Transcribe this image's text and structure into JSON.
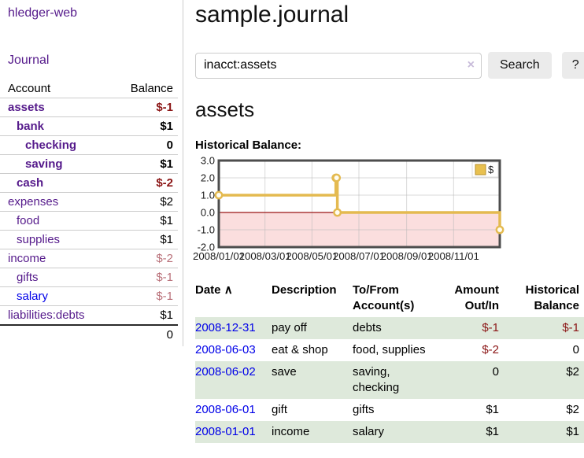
{
  "app": {
    "title": "hledger-web"
  },
  "sidebar": {
    "journal_link": "Journal",
    "accounts": {
      "header": {
        "account": "Account",
        "balance": "Balance"
      },
      "rows": [
        {
          "name": "assets",
          "depth": 1,
          "emph": true,
          "name_color": "purple",
          "balance": "$-1",
          "bal_color": "negative"
        },
        {
          "name": "bank",
          "depth": 2,
          "emph": true,
          "name_color": "purple",
          "balance": "$1",
          "bal_color": "normal"
        },
        {
          "name": "checking",
          "depth": 3,
          "emph": true,
          "name_color": "purple",
          "balance": "0",
          "bal_color": "normal"
        },
        {
          "name": "saving",
          "depth": 3,
          "emph": true,
          "name_color": "purple",
          "balance": "$1",
          "bal_color": "normal"
        },
        {
          "name": "cash",
          "depth": 2,
          "emph": true,
          "name_color": "purple",
          "balance": "$-2",
          "bal_color": "negative"
        },
        {
          "name": "expenses",
          "depth": 1,
          "emph": false,
          "name_color": "purple",
          "balance": "$2",
          "bal_color": "normal"
        },
        {
          "name": "food",
          "depth": 2,
          "emph": false,
          "name_color": "purple",
          "balance": "$1",
          "bal_color": "normal"
        },
        {
          "name": "supplies",
          "depth": 2,
          "emph": false,
          "name_color": "purple",
          "balance": "$1",
          "bal_color": "normal"
        },
        {
          "name": "income",
          "depth": 1,
          "emph": false,
          "name_color": "purple",
          "balance": "$-2",
          "bal_color": "rose"
        },
        {
          "name": "gifts",
          "depth": 2,
          "emph": false,
          "name_color": "purple",
          "balance": "$-1",
          "bal_color": "rose"
        },
        {
          "name": "salary",
          "depth": 2,
          "emph": false,
          "name_color": "blue",
          "balance": "$-1",
          "bal_color": "rose"
        },
        {
          "name": "liabilities:debts",
          "depth": 1,
          "emph": false,
          "name_color": "purple",
          "balance": "$1",
          "bal_color": "normal"
        }
      ],
      "total": "0"
    }
  },
  "main": {
    "title": "sample.journal",
    "search": {
      "value": "inacct:assets",
      "clear_icon": "×",
      "search_button": "Search",
      "help_button": "?"
    },
    "account_heading": "assets",
    "chart_label": "Historical Balance:",
    "register": {
      "headers": {
        "date": "Date",
        "sort_icon": "∧",
        "description": "Description",
        "accounts": "To/From Account(s)",
        "amount": "Amount Out/In",
        "balance": "Historical Balance"
      },
      "rows": [
        {
          "date": "2008-12-31",
          "description": "pay off",
          "accounts": "debts",
          "amount": "$-1",
          "amount_color": "negative",
          "balance": "$-1",
          "bal_color": "negative"
        },
        {
          "date": "2008-06-03",
          "description": "eat & shop",
          "accounts": "food, supplies",
          "amount": "$-2",
          "amount_color": "negative",
          "balance": "0",
          "bal_color": "normal"
        },
        {
          "date": "2008-06-02",
          "description": "save",
          "accounts": "saving, checking",
          "amount": "0",
          "amount_color": "normal",
          "balance": "$2",
          "bal_color": "normal"
        },
        {
          "date": "2008-06-01",
          "description": "gift",
          "accounts": "gifts",
          "amount": "$1",
          "amount_color": "normal",
          "balance": "$2",
          "bal_color": "normal"
        },
        {
          "date": "2008-01-01",
          "description": "income",
          "accounts": "salary",
          "amount": "$1",
          "amount_color": "normal",
          "balance": "$1",
          "bal_color": "normal"
        }
      ]
    }
  },
  "chart_data": {
    "type": "line",
    "step": true,
    "title": "Historical Balance",
    "legend": [
      "$"
    ],
    "legend_position": "top-right",
    "ylim": [
      -2,
      3
    ],
    "ytick_values": [
      3,
      2,
      1,
      0,
      -1,
      -2
    ],
    "ytick_labels": [
      "3.0",
      "2.0",
      "1.0",
      "0.0",
      "-1.0",
      "-2.0"
    ],
    "x_range_days": 365,
    "xticks": [
      {
        "label": "2008/01/01",
        "day": 0
      },
      {
        "label": "2008/03/01",
        "day": 60
      },
      {
        "label": "2008/05/01",
        "day": 121
      },
      {
        "label": "2008/07/01",
        "day": 182
      },
      {
        "label": "2008/09/01",
        "day": 244
      },
      {
        "label": "2008/11/01",
        "day": 305
      }
    ],
    "points": [
      {
        "date": "2008-01-01",
        "day": 0,
        "value": 1
      },
      {
        "date": "2008-06-01",
        "day": 152,
        "value": 2
      },
      {
        "date": "2008-06-02",
        "day": 153,
        "value": 2
      },
      {
        "date": "2008-06-03",
        "day": 154,
        "value": 0
      },
      {
        "date": "2008-12-31",
        "day": 365,
        "value": -1
      }
    ],
    "colors": {
      "line": "#e4ba50",
      "marker_fill": "#fffdf2",
      "negative_region": "#fbdede",
      "zero_line": "#9b1616",
      "grid": "#b9b9b9",
      "border": "#4d4d4d",
      "legend_square_fill": "#e8c04f",
      "legend_square_border": "#b8922e"
    }
  }
}
